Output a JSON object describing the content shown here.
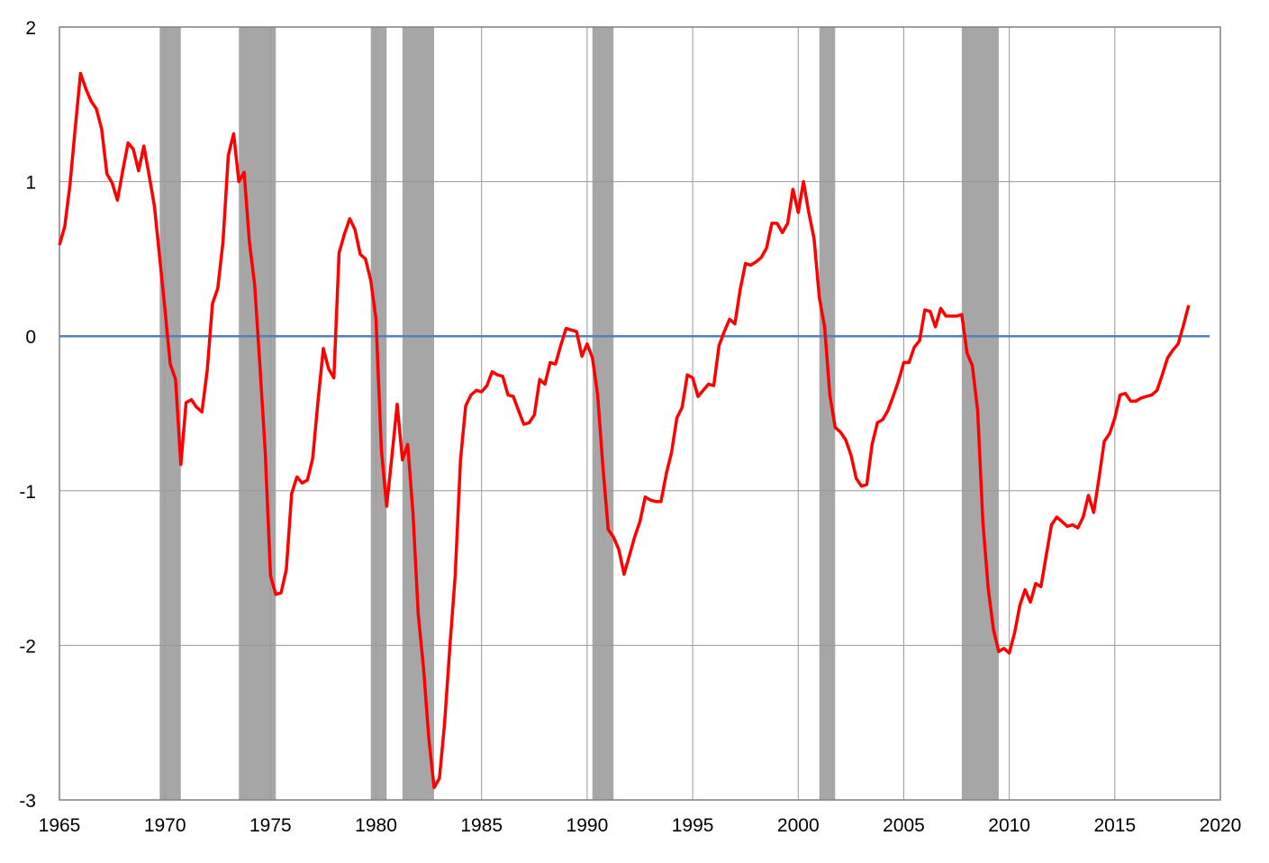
{
  "chart_data": {
    "type": "line",
    "title": "",
    "xlabel": "",
    "ylabel": "",
    "xlim": [
      1965,
      2020
    ],
    "ylim": [
      -3,
      2
    ],
    "grid": true,
    "x_ticks": [
      1965,
      1970,
      1975,
      1980,
      1985,
      1990,
      1995,
      2000,
      2005,
      2010,
      2015,
      2020
    ],
    "y_ticks": [
      2,
      1,
      0,
      -1,
      -2,
      -3
    ],
    "x_tick_labels": [
      "1965",
      "1970",
      "1975",
      "1980",
      "1985",
      "1990",
      "1995",
      "2000",
      "2005",
      "2010",
      "2015",
      "2020"
    ],
    "y_tick_labels": [
      "2",
      "1",
      "0",
      "-1",
      "-2",
      "-3"
    ],
    "colors": {
      "series": "#ff0000",
      "zero_line": "#4f81bd",
      "recession": "#a6a6a6",
      "grid": "#999999",
      "frame": "#808080"
    },
    "reference_line": {
      "y": 0
    },
    "recessions": [
      [
        1969.75,
        1970.75
      ],
      [
        1973.5,
        1975.25
      ],
      [
        1979.75,
        1980.5
      ],
      [
        1981.25,
        1982.75
      ],
      [
        1990.25,
        1991.25
      ],
      [
        2001.0,
        2001.75
      ],
      [
        2007.75,
        2009.5
      ]
    ],
    "series": [
      {
        "x": [
          1965.0,
          1965.25,
          1965.5,
          1965.75,
          1966.0,
          1966.25,
          1966.5,
          1966.75,
          1967.0,
          1967.25,
          1967.5,
          1967.75,
          1968.0,
          1968.25,
          1968.5,
          1968.75,
          1969.0,
          1969.25,
          1969.5,
          1969.75,
          1970.0,
          1970.25,
          1970.5,
          1970.75,
          1971.0,
          1971.25,
          1971.5,
          1971.75,
          1972.0,
          1972.25,
          1972.5,
          1972.75,
          1973.0,
          1973.25,
          1973.5,
          1973.75,
          1974.0,
          1974.25,
          1974.5,
          1974.75,
          1975.0,
          1975.25,
          1975.5,
          1975.75,
          1976.0,
          1976.25,
          1976.5,
          1976.75,
          1977.0,
          1977.25,
          1977.5,
          1977.75,
          1978.0,
          1978.25,
          1978.5,
          1978.75,
          1979.0,
          1979.25,
          1979.5,
          1979.75,
          1980.0,
          1980.25,
          1980.5,
          1980.75,
          1981.0,
          1981.25,
          1981.5,
          1981.75,
          1982.0,
          1982.25,
          1982.5,
          1982.75,
          1983.0,
          1983.25,
          1983.5,
          1983.75,
          1984.0,
          1984.25,
          1984.5,
          1984.75,
          1985.0,
          1985.25,
          1985.5,
          1985.75,
          1986.0,
          1986.25,
          1986.5,
          1986.75,
          1987.0,
          1987.25,
          1987.5,
          1987.75,
          1988.0,
          1988.25,
          1988.5,
          1988.75,
          1989.0,
          1989.25,
          1989.5,
          1989.75,
          1990.0,
          1990.25,
          1990.5,
          1990.75,
          1991.0,
          1991.25,
          1991.5,
          1991.75,
          1992.0,
          1992.25,
          1992.5,
          1992.75,
          1993.0,
          1993.25,
          1993.5,
          1993.75,
          1994.0,
          1994.25,
          1994.5,
          1994.75,
          1995.0,
          1995.25,
          1995.5,
          1995.75,
          1996.0,
          1996.25,
          1996.5,
          1996.75,
          1997.0,
          1997.25,
          1997.5,
          1997.75,
          1998.0,
          1998.25,
          1998.5,
          1998.75,
          1999.0,
          1999.25,
          1999.5,
          1999.75,
          2000.0,
          2000.25,
          2000.5,
          2000.75,
          2001.0,
          2001.25,
          2001.5,
          2001.75,
          2002.0,
          2002.25,
          2002.5,
          2002.75,
          2003.0,
          2003.25,
          2003.5,
          2003.75,
          2004.0,
          2004.25,
          2004.5,
          2004.75,
          2005.0,
          2005.25,
          2005.5,
          2005.75,
          2006.0,
          2006.25,
          2006.5,
          2006.75,
          2007.0,
          2007.25,
          2007.5,
          2007.75,
          2008.0,
          2008.25,
          2008.5,
          2008.75,
          2009.0,
          2009.25,
          2009.5,
          2009.75,
          2010.0,
          2010.25,
          2010.5,
          2010.75,
          2011.0,
          2011.25,
          2011.5,
          2011.75,
          2012.0,
          2012.25,
          2012.5,
          2012.75,
          2013.0,
          2013.25,
          2013.5,
          2013.75,
          2014.0,
          2014.25,
          2014.5,
          2014.75,
          2015.0,
          2015.25,
          2015.5,
          2015.75,
          2016.0,
          2016.25,
          2016.5,
          2016.75,
          2017.0,
          2017.25,
          2017.5,
          2017.75,
          2018.0,
          2018.25,
          2018.5
        ],
        "values": [
          0.59,
          0.71,
          0.98,
          1.35,
          1.7,
          1.6,
          1.52,
          1.47,
          1.34,
          1.05,
          0.99,
          0.88,
          1.07,
          1.25,
          1.21,
          1.07,
          1.23,
          1.04,
          0.84,
          0.51,
          0.17,
          -0.18,
          -0.28,
          -0.83,
          -0.43,
          -0.41,
          -0.46,
          -0.49,
          -0.22,
          0.21,
          0.31,
          0.61,
          1.17,
          1.31,
          1.0,
          1.06,
          0.61,
          0.33,
          -0.19,
          -0.75,
          -1.55,
          -1.67,
          -1.66,
          -1.51,
          -1.02,
          -0.91,
          -0.95,
          -0.93,
          -0.79,
          -0.42,
          -0.08,
          -0.21,
          -0.27,
          0.54,
          0.66,
          0.76,
          0.69,
          0.53,
          0.5,
          0.36,
          0.11,
          -0.73,
          -1.1,
          -0.78,
          -0.44,
          -0.8,
          -0.7,
          -1.15,
          -1.8,
          -2.15,
          -2.6,
          -2.92,
          -2.86,
          -2.5,
          -2.0,
          -1.55,
          -0.8,
          -0.45,
          -0.38,
          -0.35,
          -0.36,
          -0.32,
          -0.23,
          -0.25,
          -0.26,
          -0.38,
          -0.39,
          -0.48,
          -0.57,
          -0.56,
          -0.51,
          -0.28,
          -0.31,
          -0.17,
          -0.18,
          -0.06,
          0.05,
          0.04,
          0.03,
          -0.13,
          -0.05,
          -0.14,
          -0.38,
          -0.85,
          -1.25,
          -1.3,
          -1.38,
          -1.54,
          -1.42,
          -1.3,
          -1.2,
          -1.04,
          -1.06,
          -1.07,
          -1.07,
          -0.89,
          -0.75,
          -0.53,
          -0.46,
          -0.25,
          -0.27,
          -0.39,
          -0.35,
          -0.31,
          -0.32,
          -0.06,
          0.03,
          0.11,
          0.08,
          0.3,
          0.47,
          0.46,
          0.48,
          0.51,
          0.57,
          0.73,
          0.73,
          0.67,
          0.73,
          0.95,
          0.8,
          1.0,
          0.8,
          0.63,
          0.25,
          0.06,
          -0.38,
          -0.59,
          -0.62,
          -0.67,
          -0.77,
          -0.92,
          -0.97,
          -0.96,
          -0.7,
          -0.56,
          -0.54,
          -0.48,
          -0.39,
          -0.29,
          -0.17,
          -0.17,
          -0.07,
          -0.03,
          0.17,
          0.16,
          0.06,
          0.18,
          0.13,
          0.13,
          0.13,
          0.14,
          -0.11,
          -0.19,
          -0.48,
          -1.2,
          -1.63,
          -1.9,
          -2.04,
          -2.02,
          -2.05,
          -1.92,
          -1.74,
          -1.64,
          -1.72,
          -1.6,
          -1.62,
          -1.42,
          -1.22,
          -1.17,
          -1.2,
          -1.23,
          -1.22,
          -1.24,
          -1.17,
          -1.03,
          -1.14,
          -0.92,
          -0.68,
          -0.63,
          -0.53,
          -0.38,
          -0.37,
          -0.42,
          -0.42,
          -0.4,
          -0.39,
          -0.38,
          -0.35,
          -0.25,
          -0.14,
          -0.09,
          -0.05,
          0.07,
          0.2
        ]
      }
    ]
  }
}
